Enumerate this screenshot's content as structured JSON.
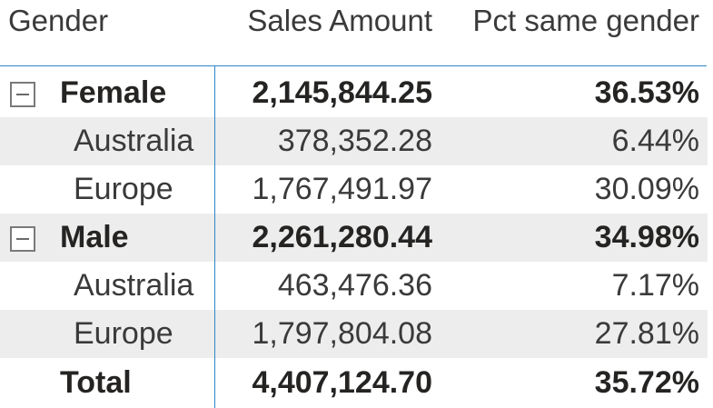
{
  "headers": {
    "gender": "Gender",
    "sales": "Sales Amount",
    "pct": "Pct same gender"
  },
  "rows": [
    {
      "label": "Female",
      "sales": "2,145,844.25",
      "pct": "36.53%"
    },
    {
      "label": "Australia",
      "sales": "378,352.28",
      "pct": "6.44%"
    },
    {
      "label": "Europe",
      "sales": "1,767,491.97",
      "pct": "30.09%"
    },
    {
      "label": "Male",
      "sales": "2,261,280.44",
      "pct": "34.98%"
    },
    {
      "label": "Australia",
      "sales": "463,476.36",
      "pct": "7.17%"
    },
    {
      "label": "Europe",
      "sales": "1,797,804.08",
      "pct": "27.81%"
    },
    {
      "label": "Total",
      "sales": "4,407,124.70",
      "pct": "35.72%"
    }
  ],
  "icons": {
    "collapse": "collapse-minus-icon"
  },
  "colors": {
    "accent_line": "#2f86c9",
    "band": "#ededed"
  }
}
